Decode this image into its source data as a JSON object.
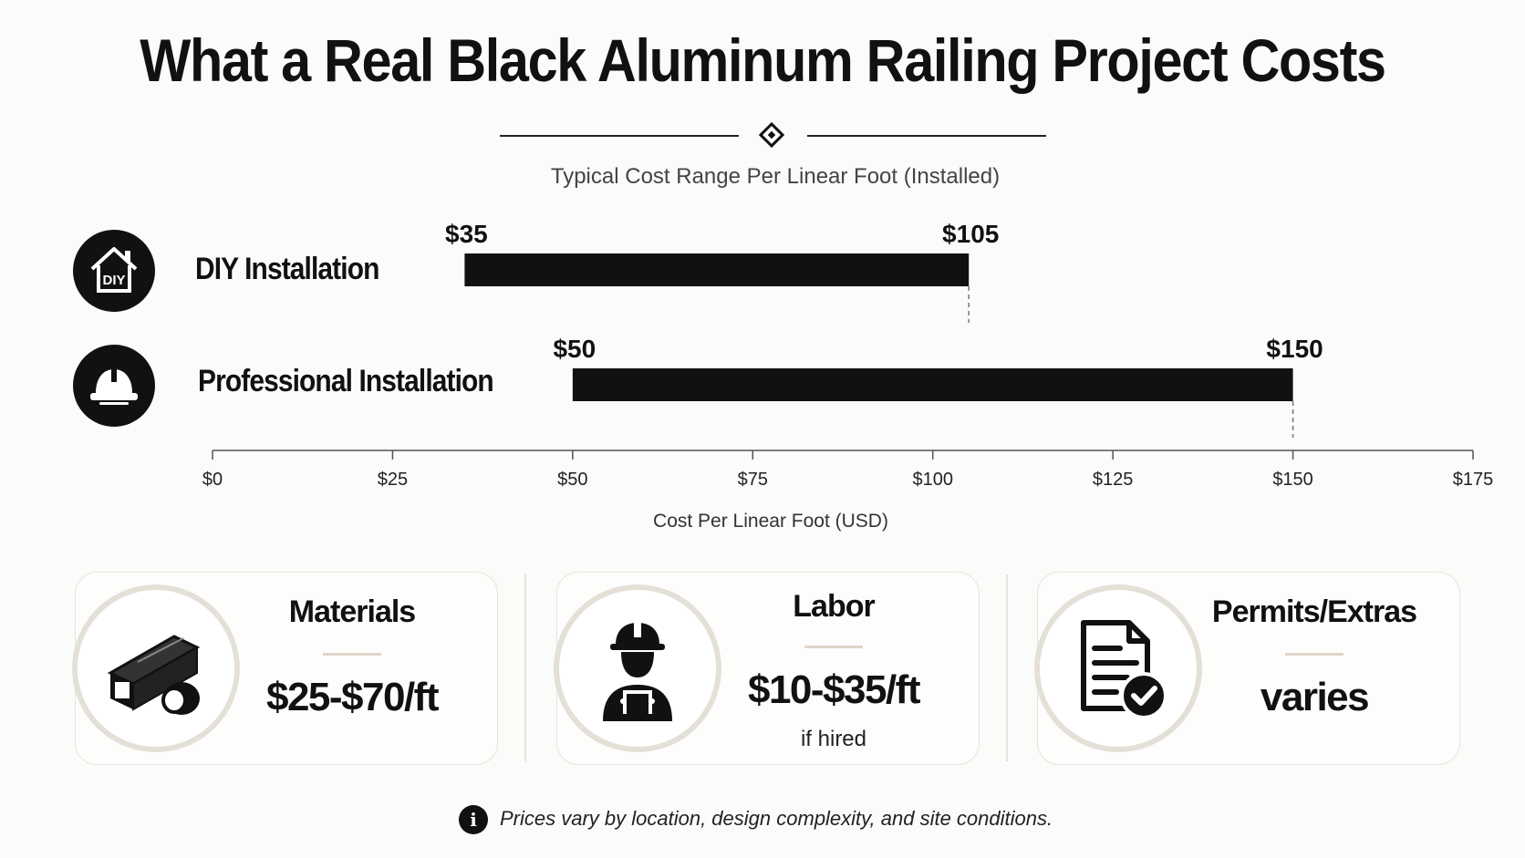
{
  "title": "What a Real Black Aluminum Railing Project Costs",
  "chart_data": {
    "type": "bar",
    "subtitle": "Typical Cost Range Per Linear Foot (Installed)",
    "xlabel": "Cost Per Linear Foot (USD)",
    "xlim": [
      0,
      175
    ],
    "x_ticks": [
      0,
      25,
      50,
      75,
      100,
      125,
      150,
      175
    ],
    "x_tick_labels": [
      "$0",
      "$25",
      "$50",
      "$75",
      "$100",
      "$125",
      "$150",
      "$175"
    ],
    "grid": false,
    "categories": [
      "DIY Installation",
      "Professional Installation"
    ],
    "ranges": [
      {
        "category": "DIY Installation",
        "low": 35,
        "high": 105,
        "low_label": "$35",
        "high_label": "$105",
        "icon": "diy-house-icon"
      },
      {
        "category": "Professional Installation",
        "low": 50,
        "high": 150,
        "low_label": "$50",
        "high_label": "$150",
        "icon": "hard-hat-icon"
      }
    ]
  },
  "cards": [
    {
      "title": "Materials",
      "value": "$25-$70/ft",
      "note": "",
      "icon": "aluminum-tube-icon"
    },
    {
      "title": "Labor",
      "value": "$10-$35/ft",
      "note": "if hired",
      "icon": "worker-icon"
    },
    {
      "title": "Permits/Extras",
      "value": "varies",
      "note": "",
      "icon": "document-check-icon"
    }
  ],
  "footer": {
    "icon": "info-icon",
    "text": "Prices vary by location, design complexity, and site conditions."
  },
  "colors": {
    "bar": "#111111",
    "background": "#fbfbfa",
    "accent": "#ddd6c8"
  }
}
